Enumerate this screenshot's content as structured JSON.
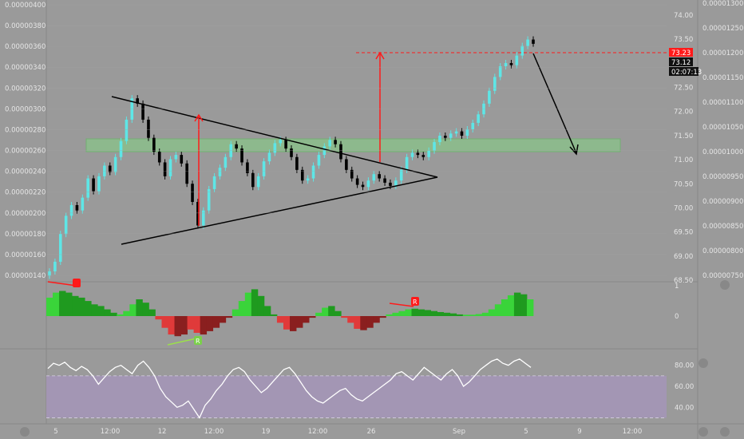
{
  "colors": {
    "background": "#9a9a9a",
    "axis_text": "#e6e6e6",
    "grid": "#a4a4a4",
    "candle_up": "#5ee6e6",
    "candle_down": "#000000",
    "trendline": "#000000",
    "measure_arrow": "#ff1a1a",
    "zone_fill": "#7fe07f",
    "zone_stroke": "#44c744",
    "osc_up_bright": "#3ad43a",
    "osc_up_dark": "#1f9a1f",
    "osc_down_bright": "#e03a3a",
    "osc_down_dark": "#8a1f1f",
    "rsi_band": "#a495b8",
    "rsi_line": "#ffffff",
    "tag_red": "#ff1a1a",
    "tag_dark": "#111111"
  },
  "chart_data": [
    {
      "type": "candlestick",
      "pane": "price",
      "left_axis_ticks": [
        "0.00000400",
        "0.00000380",
        "0.00000360",
        "0.00000340",
        "0.00000320",
        "0.00000300",
        "0.00000280",
        "0.00000260",
        "0.00000240",
        "0.00000220",
        "0.00000200",
        "0.00000180",
        "0.00000160",
        "0.00000140"
      ],
      "left_axis_range": [
        1.4e-06,
        4e-06
      ],
      "mid_axis_ticks": [
        "74.00",
        "73.50",
        "73.00",
        "72.50",
        "72.00",
        "71.50",
        "71.00",
        "70.50",
        "70.00",
        "69.50",
        "69.00",
        "68.50"
      ],
      "right_axis_ticks": [
        "0.00001300",
        "0.00001250",
        "0.00001200",
        "0.00001150",
        "0.00001100",
        "0.00001050",
        "0.00001000",
        "0.00000950",
        "0.00000900",
        "0.00000850",
        "0.00000800",
        "0.00000750"
      ],
      "price_tags": [
        {
          "label": "73.23",
          "style": "red"
        },
        {
          "label": "73.12",
          "style": "dark"
        },
        {
          "label": "02:07:13",
          "style": "dark"
        }
      ],
      "close_values": [
        1.43e-06,
        1.52e-06,
        1.78e-06,
        1.95e-06,
        2.05e-06,
        2e-06,
        2.12e-06,
        2.3e-06,
        2.18e-06,
        2.32e-06,
        2.42e-06,
        2.36e-06,
        2.5e-06,
        2.65e-06,
        2.85e-06,
        3.05e-06,
        3e-06,
        2.85e-06,
        2.68e-06,
        2.55e-06,
        2.45e-06,
        2.32e-06,
        2.48e-06,
        2.52e-06,
        2.44e-06,
        2.25e-06,
        2.08e-06,
        1.86e-06,
        2e-06,
        2.2e-06,
        2.32e-06,
        2.4e-06,
        2.5e-06,
        2.62e-06,
        2.58e-06,
        2.45e-06,
        2.35e-06,
        2.22e-06,
        2.32e-06,
        2.46e-06,
        2.54e-06,
        2.63e-06,
        2.66e-06,
        2.58e-06,
        2.5e-06,
        2.38e-06,
        2.28e-06,
        2.3e-06,
        2.42e-06,
        2.52e-06,
        2.6e-06,
        2.66e-06,
        2.62e-06,
        2.48e-06,
        2.38e-06,
        2.3e-06,
        2.24e-06,
        2.22e-06,
        2.28e-06,
        2.34e-06,
        2.3e-06,
        2.26e-06,
        2.23e-06,
        2.28e-06,
        2.38e-06,
        2.5e-06,
        2.54e-06,
        2.52e-06,
        2.5e-06,
        2.56e-06,
        2.64e-06,
        2.7e-06,
        2.68e-06,
        2.72e-06,
        2.74e-06,
        2.7e-06,
        2.76e-06,
        2.82e-06,
        2.9e-06,
        3e-06,
        3.12e-06,
        3.25e-06,
        3.35e-06,
        3.38e-06,
        3.36e-06,
        3.45e-06,
        3.54e-06,
        3.6e-06,
        3.56e-06
      ],
      "zone": {
        "from": 2.55e-06,
        "to": 2.67e-06
      },
      "trendline_upper": [
        [
          3.12e-06,
          0
        ],
        [
          2.36e-06,
          88
        ]
      ],
      "trendline_lower": [
        [
          1.7e-06,
          0
        ],
        [
          2.36e-06,
          88
        ]
      ],
      "measure_arrows": [
        {
          "x_index": 28,
          "from": 1.85e-06,
          "to": 2.98e-06
        },
        {
          "x_index": 66,
          "from": 2.53e-06,
          "to": 3.6e-06
        }
      ],
      "target_arrow": {
        "from_index": 88,
        "from": 3.6e-06,
        "to_index": 96,
        "to": 2.59e-06
      },
      "target_level": 3.6e-06
    },
    {
      "type": "histogram",
      "pane": "oscillator",
      "axis_ticks": [
        "1",
        "0"
      ],
      "labels": [
        "R",
        "R"
      ],
      "values": [
        0.55,
        0.7,
        0.75,
        0.7,
        0.6,
        0.55,
        0.45,
        0.35,
        0.3,
        0.2,
        0.1,
        0.05,
        0.15,
        0.35,
        0.5,
        0.4,
        0.2,
        -0.1,
        -0.35,
        -0.55,
        -0.6,
        -0.55,
        -0.4,
        -0.5,
        -0.55,
        -0.45,
        -0.35,
        -0.2,
        -0.05,
        0.2,
        0.45,
        0.7,
        0.8,
        0.6,
        0.3,
        0.05,
        -0.2,
        -0.4,
        -0.45,
        -0.35,
        -0.2,
        -0.05,
        0.1,
        0.25,
        0.3,
        0.15,
        -0.05,
        -0.2,
        -0.38,
        -0.42,
        -0.35,
        -0.2,
        -0.05,
        0.05,
        0.1,
        0.15,
        0.2,
        0.22,
        0.2,
        0.18,
        0.15,
        0.12,
        0.1,
        0.08,
        0.05,
        0.04,
        0.04,
        0.06,
        0.1,
        0.2,
        0.35,
        0.5,
        0.62,
        0.7,
        0.65,
        0.5
      ]
    },
    {
      "type": "line",
      "pane": "rsi",
      "axis_ticks": [
        "80.00",
        "60.00",
        "40.00"
      ],
      "ylim": [
        25,
        95
      ],
      "band": [
        30,
        70
      ],
      "values": [
        77,
        82,
        80,
        83,
        78,
        75,
        79,
        76,
        70,
        62,
        68,
        74,
        78,
        80,
        76,
        72,
        80,
        84,
        78,
        70,
        58,
        50,
        45,
        40,
        42,
        46,
        38,
        30,
        42,
        48,
        56,
        62,
        70,
        76,
        78,
        74,
        66,
        60,
        54,
        58,
        64,
        70,
        76,
        78,
        72,
        64,
        56,
        50,
        46,
        44,
        48,
        52,
        56,
        58,
        52,
        48,
        46,
        50,
        54,
        58,
        62,
        66,
        72,
        74,
        70,
        66,
        72,
        78,
        74,
        70,
        66,
        72,
        76,
        70,
        60,
        64,
        70,
        76,
        80,
        84,
        86,
        82,
        80,
        84,
        86,
        82,
        78
      ],
      "xlabel": ""
    }
  ],
  "time_axis": {
    "labels": [
      "5",
      "12:00",
      "12",
      "12:00",
      "19",
      "12:00",
      "26",
      "Sep",
      "5",
      "9",
      "12:00"
    ]
  }
}
